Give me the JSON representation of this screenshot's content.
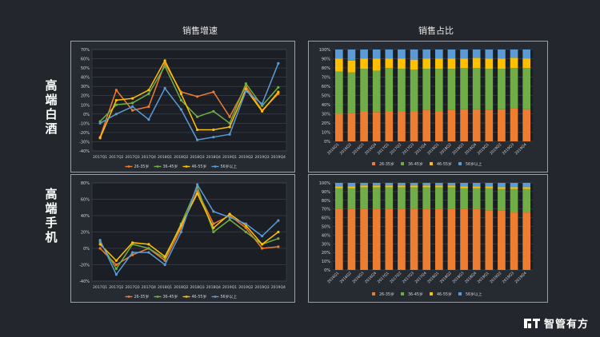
{
  "header": {
    "left_title": "销售增速",
    "right_title": "销售占比"
  },
  "rows": [
    {
      "label": "高端白酒"
    },
    {
      "label": "高端手机"
    }
  ],
  "brand": {
    "name": "智管有方"
  },
  "colors": {
    "s1": "#ed7d31",
    "s2": "#70ad47",
    "s3": "#ffc000",
    "s4": "#5b9bd5",
    "s5": "#4472c4"
  },
  "chart_data": [
    {
      "id": "liquor-growth",
      "type": "line",
      "categories": [
        "2017Q1",
        "2017Q2",
        "2017Q3",
        "2017Q4",
        "2018Q1",
        "2018Q2",
        "2018Q3",
        "2018Q4",
        "2019Q1",
        "2019Q2",
        "2019Q3",
        "2019Q4"
      ],
      "ylim": [
        -40,
        70
      ],
      "yticks": [
        -40,
        -30,
        -20,
        -10,
        0,
        10,
        20,
        30,
        40,
        50,
        60,
        70
      ],
      "tick_suffix": "%",
      "legend": [
        "26-35岁",
        "36-45岁",
        "46-55岁",
        "56岁以上"
      ],
      "series": [
        {
          "name": "26-35岁",
          "values": [
            -25,
            26,
            4,
            8,
            55,
            24,
            19,
            24,
            -3,
            30,
            4,
            22
          ]
        },
        {
          "name": "36-45岁",
          "values": [
            -8,
            10,
            12,
            22,
            52,
            15,
            -3,
            3,
            -10,
            33,
            9,
            29
          ]
        },
        {
          "name": "46-55岁",
          "values": [
            -26,
            15,
            17,
            26,
            58,
            22,
            -17,
            -17,
            -14,
            27,
            3,
            24
          ]
        },
        {
          "name": "56岁以上",
          "values": [
            -10,
            0,
            8,
            -6,
            28,
            5,
            -28,
            -25,
            -22,
            25,
            11,
            55
          ]
        }
      ]
    },
    {
      "id": "liquor-share",
      "type": "bar",
      "stacked": true,
      "categories": [
        "2016Q1",
        "2016Q2",
        "2016Q3",
        "2016Q4",
        "2017Q1",
        "2017Q2",
        "2017Q3",
        "2017Q4",
        "2018Q1",
        "2018Q2",
        "2018Q3",
        "2018Q4",
        "2019Q1",
        "2019Q2",
        "2019Q3",
        "2019Q4"
      ],
      "ylim": [
        0,
        100
      ],
      "yticks": [
        0,
        10,
        20,
        30,
        40,
        50,
        60,
        70,
        80,
        90,
        100
      ],
      "tick_suffix": "%",
      "legend": [
        "26-35岁",
        "36-45岁",
        "46-55岁",
        "56岁以上"
      ],
      "series": [
        {
          "name": "26-35岁",
          "values": [
            30,
            31,
            33,
            32,
            33,
            33,
            33,
            34,
            33,
            34,
            35,
            35,
            34,
            35,
            36,
            35
          ]
        },
        {
          "name": "36-45岁",
          "values": [
            46,
            44,
            46,
            45,
            47,
            46,
            45,
            45,
            46,
            45,
            45,
            45,
            45,
            44,
            44,
            45
          ]
        },
        {
          "name": "46-55岁",
          "values": [
            14,
            13,
            11,
            13,
            10,
            11,
            11,
            11,
            11,
            11,
            10,
            11,
            11,
            11,
            11,
            10
          ]
        },
        {
          "name": "56岁以上",
          "values": [
            10,
            12,
            10,
            10,
            10,
            10,
            11,
            10,
            10,
            10,
            10,
            9,
            10,
            10,
            9,
            10
          ]
        }
      ]
    },
    {
      "id": "phone-growth",
      "type": "line",
      "categories": [
        "2017Q1",
        "2017Q2",
        "2017Q3",
        "2017Q4",
        "2018Q1",
        "2018Q2",
        "2018Q3",
        "2018Q4",
        "2019Q1",
        "2019Q2",
        "2019Q3",
        "2019Q4"
      ],
      "ylim": [
        -40,
        80
      ],
      "yticks": [
        -40,
        -20,
        0,
        20,
        40,
        60,
        80
      ],
      "tick_suffix": "%",
      "legend": [
        "26-35岁",
        "36-45岁",
        "46-55岁",
        "56岁以上"
      ],
      "series": [
        {
          "name": "26-35岁",
          "values": [
            0,
            -20,
            -8,
            0,
            -15,
            25,
            70,
            30,
            40,
            25,
            0,
            2
          ]
        },
        {
          "name": "36-45岁",
          "values": [
            8,
            -25,
            5,
            0,
            -12,
            30,
            75,
            20,
            35,
            20,
            5,
            12
          ]
        },
        {
          "name": "46-55岁",
          "values": [
            5,
            -15,
            7,
            5,
            -10,
            28,
            67,
            25,
            42,
            28,
            5,
            20
          ]
        },
        {
          "name": "56岁以上",
          "values": [
            10,
            -32,
            -5,
            -5,
            -20,
            20,
            78,
            45,
            38,
            30,
            15,
            34
          ]
        }
      ]
    },
    {
      "id": "phone-share",
      "type": "bar",
      "stacked": true,
      "categories": [
        "2016Q1",
        "2016Q2",
        "2016Q3",
        "2016Q4",
        "2017Q1",
        "2017Q2",
        "2017Q3",
        "2017Q4",
        "2018Q1",
        "2018Q2",
        "2018Q3",
        "2018Q4",
        "2019Q1",
        "2019Q2",
        "2019Q3",
        "2019Q4"
      ],
      "ylim": [
        0,
        100
      ],
      "yticks": [
        0,
        10,
        20,
        30,
        40,
        50,
        60,
        70,
        80,
        90,
        100
      ],
      "tick_suffix": "%",
      "legend": [
        "26-35岁",
        "36-45岁",
        "46-55岁",
        "56岁以上"
      ],
      "series": [
        {
          "name": "26-35岁",
          "values": [
            70,
            70,
            70,
            70,
            70,
            70,
            70,
            70,
            70,
            70,
            70,
            70,
            68,
            68,
            66,
            66
          ]
        },
        {
          "name": "36-45岁",
          "values": [
            24,
            24,
            25,
            25,
            25,
            25,
            25,
            25,
            25,
            25,
            24,
            24,
            26,
            25,
            27,
            27
          ]
        },
        {
          "name": "46-55岁",
          "values": [
            2,
            2,
            2,
            2,
            2,
            2,
            2,
            2,
            2,
            2,
            2,
            2,
            2,
            2,
            2,
            2
          ]
        },
        {
          "name": "56岁以上",
          "values": [
            4,
            4,
            3,
            3,
            3,
            3,
            3,
            3,
            3,
            3,
            4,
            4,
            4,
            5,
            5,
            5
          ]
        }
      ]
    }
  ]
}
